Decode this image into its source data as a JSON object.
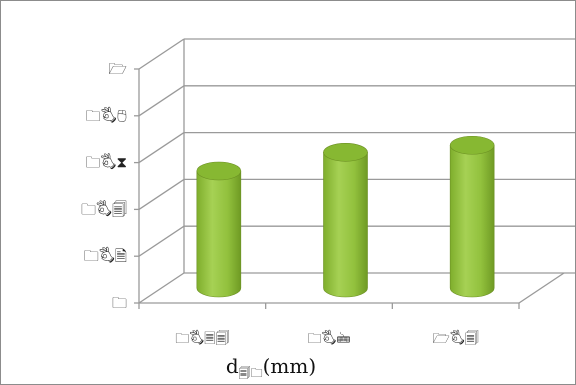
{
  "chart_data": {
    "type": "bar",
    "style": "3d-cylinder",
    "categories": [
      "🗀🖏🗏🗐",
      "🗀🖏🖮",
      "🗁🖏🗐"
    ],
    "values": [
      2.5,
      2.9,
      3.05
    ],
    "ylim": [
      0,
      5
    ],
    "y_ticks": [
      0,
      1,
      2,
      3,
      4,
      5
    ],
    "y_tick_labels": [
      "🗀",
      "🗀🖏🗎",
      "🗀🖏🗐",
      "🗀🖏⧗",
      "🗀🖏🖰",
      "🗁"
    ],
    "xlabel_main": "d",
    "xlabel_sub": "🗐🗀",
    "xlabel_unit": "(mm)",
    "grid": true,
    "legend": "none"
  },
  "colors": {
    "bar_body": "#92c13d",
    "bar_top": "#87b832",
    "bar_edge": "#6b8f22",
    "grid": "#9a9a9a"
  }
}
